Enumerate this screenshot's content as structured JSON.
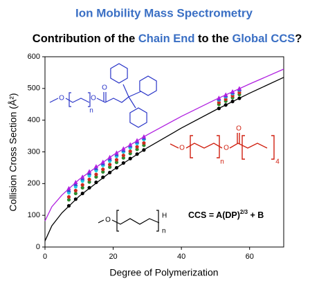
{
  "chart_data": {
    "type": "scatter",
    "title": "Ion Mobility Mass Spectrometry",
    "title_color": "#3a6fc4",
    "subtitle_parts": [
      {
        "text": "Contribution of the ",
        "color": "#000000"
      },
      {
        "text": "Chain End",
        "color": "#3a6fc4"
      },
      {
        "text": " to the ",
        "color": "#000000"
      },
      {
        "text": "Global CCS",
        "color": "#3a6fc4"
      },
      {
        "text": "?",
        "color": "#000000"
      }
    ],
    "x_label": "Degree of Polymerization",
    "y_label": "Collision Cross Section (Å²)",
    "xlim": [
      0,
      70
    ],
    "xticks": [
      0,
      20,
      40,
      60
    ],
    "ylim": [
      0,
      600
    ],
    "yticks": [
      0,
      100,
      200,
      300,
      400,
      500,
      600
    ],
    "x": [
      7,
      9,
      11,
      13,
      15,
      17,
      19,
      21,
      23,
      25,
      27,
      29,
      51,
      53,
      55,
      57
    ],
    "series": [
      {
        "color": "#000000",
        "marker": "circle",
        "values": [
          130,
          151,
          169,
          187,
          204,
          220,
          235,
          250,
          265,
          279,
          293,
          306,
          437,
          448,
          459,
          469
        ]
      },
      {
        "color": "#2e8b2e",
        "marker": "circle",
        "values": [
          149,
          169,
          187,
          205,
          221,
          237,
          252,
          267,
          281,
          295,
          308,
          321,
          450,
          460,
          471,
          481
        ]
      },
      {
        "color": "#cc2a1e",
        "marker": "circle",
        "values": [
          158,
          178,
          196,
          213,
          229,
          245,
          260,
          275,
          289,
          302,
          316,
          328,
          456,
          466,
          477,
          487
        ]
      },
      {
        "color": "#22d0e0",
        "marker": "circle",
        "values": [
          171,
          190,
          208,
          225,
          241,
          257,
          271,
          286,
          300,
          313,
          326,
          339,
          464,
          474,
          484,
          495
        ]
      },
      {
        "color": "#3050d0",
        "marker": "triangle",
        "values": [
          179,
          198,
          216,
          233,
          248,
          263,
          278,
          292,
          305,
          319,
          332,
          344,
          467,
          477,
          487,
          497
        ]
      },
      {
        "color": "#b020e0",
        "marker": "triangle",
        "values": [
          185,
          204,
          221,
          238,
          254,
          268,
          283,
          297,
          310,
          323,
          336,
          348,
          470,
          480,
          490,
          500
        ]
      }
    ],
    "fit_x": [
      0,
      2,
      5,
      10,
      20,
      30,
      40,
      50,
      60,
      70
    ],
    "fit_lines": [
      {
        "color": "#000000",
        "values": [
          19,
          67,
          108,
          160,
          243,
          313,
          375,
          432,
          485,
          535
        ]
      },
      {
        "color": "#b020e0",
        "values": [
          82,
          127,
          164,
          213,
          290,
          354,
          412,
          465,
          514,
          561
        ]
      }
    ],
    "equation_parts": [
      "CCS = A(DP)",
      "2/3",
      " + B"
    ]
  },
  "structures": [
    {
      "color": "#2a35c8",
      "labels": [
        "O",
        "O",
        "O",
        "n"
      ]
    },
    {
      "color": "#d02010",
      "labels": [
        "O",
        "O",
        "O",
        "n",
        "4"
      ]
    },
    {
      "color": "#000000",
      "labels": [
        "O",
        "H",
        "n"
      ]
    }
  ]
}
